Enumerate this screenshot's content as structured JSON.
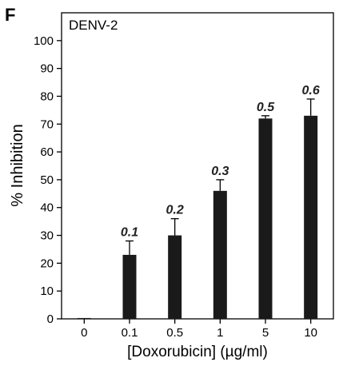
{
  "panel_label": "F",
  "chart_data": {
    "type": "bar",
    "title": "DENV-2",
    "xlabel": "[Doxorubicin] (µg/ml)",
    "ylabel": "% Inhibition",
    "categories": [
      "0",
      "0.1",
      "0.5",
      "1",
      "5",
      "10"
    ],
    "values": [
      0.3,
      23,
      30,
      46,
      72,
      73
    ],
    "errors": [
      0,
      5,
      6,
      4,
      1,
      6
    ],
    "bar_labels": [
      "",
      "0.1",
      "0.2",
      "0.3",
      "0.5",
      "0.6"
    ],
    "yticks": [
      "0",
      "10",
      "20",
      "30",
      "40",
      "50",
      "60",
      "70",
      "80",
      "90",
      "100"
    ],
    "ylim": [
      0,
      110
    ],
    "bar_color": "#1a1a1a",
    "grid": false,
    "legend": "none"
  }
}
